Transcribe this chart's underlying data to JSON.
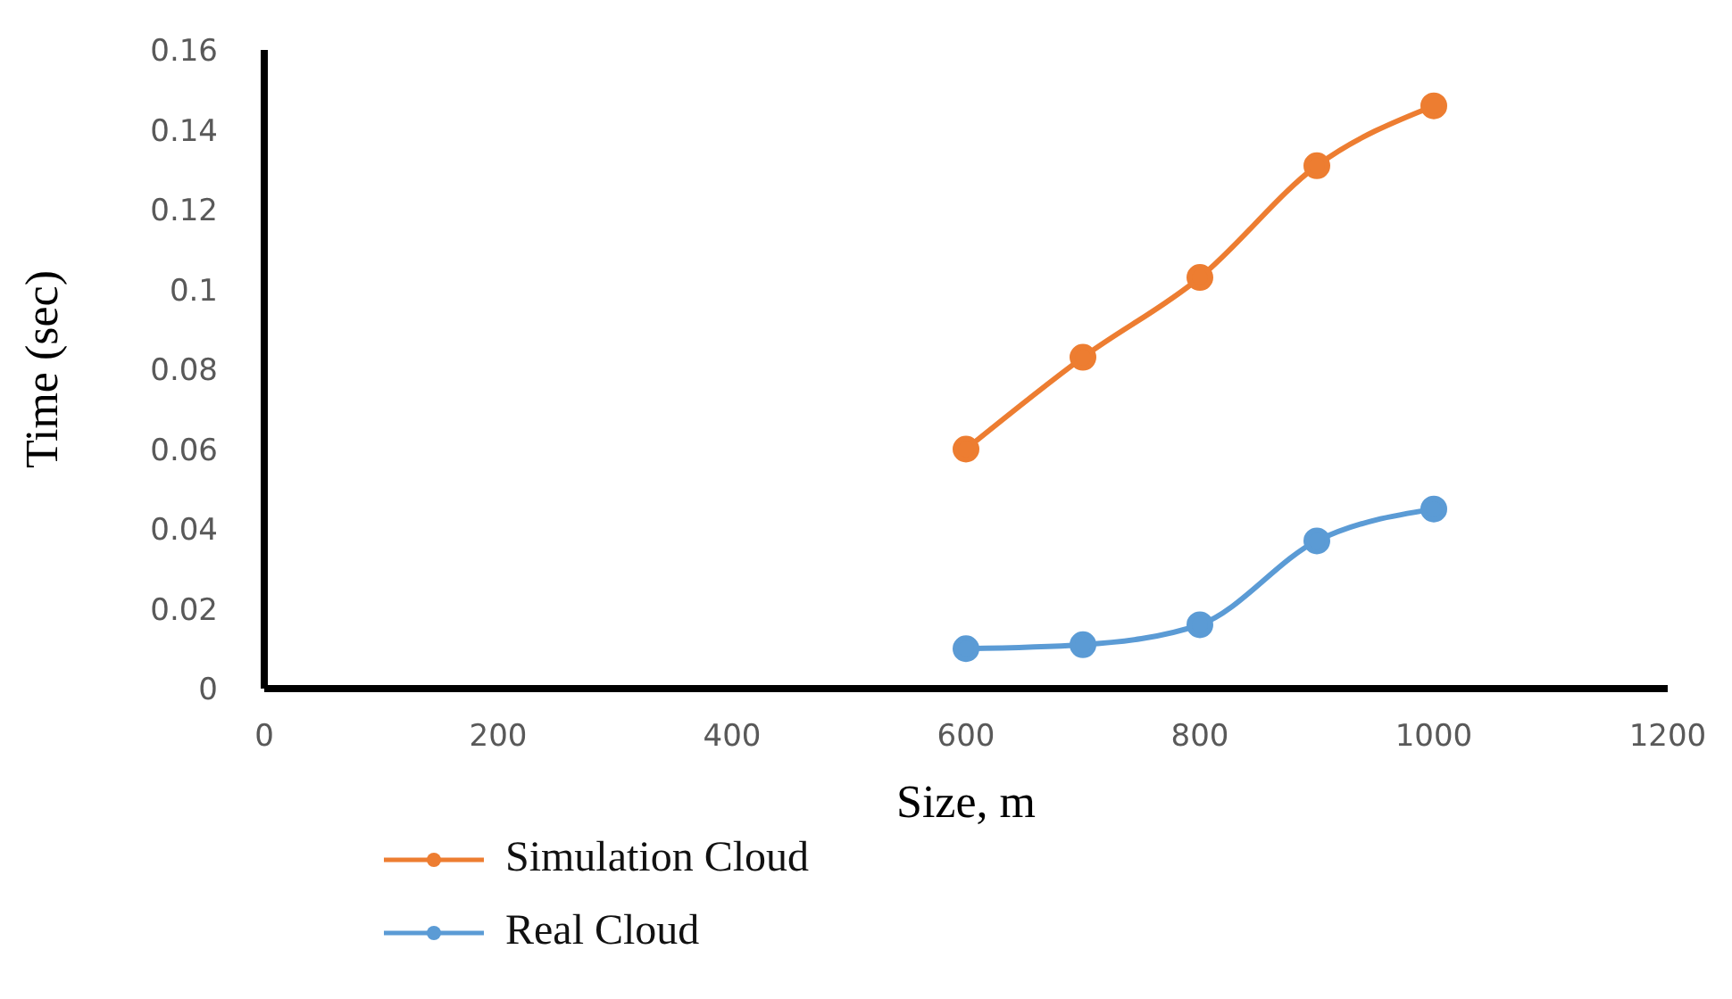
{
  "chart_data": {
    "type": "line",
    "xlabel": "Size, m",
    "ylabel": "Time (sec)",
    "x": [
      600,
      700,
      800,
      900,
      1000
    ],
    "series": [
      {
        "name": "Simulation Cloud",
        "color": "#ed7d31",
        "values": [
          0.06,
          0.083,
          0.103,
          0.131,
          0.146
        ]
      },
      {
        "name": "Real Cloud",
        "color": "#5b9bd5",
        "values": [
          0.01,
          0.011,
          0.016,
          0.037,
          0.045
        ]
      }
    ],
    "xlim": [
      0,
      1200
    ],
    "xticks": [
      0,
      200,
      400,
      600,
      800,
      1000,
      1200
    ],
    "ylim": [
      0,
      0.16
    ],
    "yticks": [
      0,
      0.02,
      0.04,
      0.06,
      0.08,
      0.1,
      0.12,
      0.14,
      0.16
    ],
    "grid": false,
    "legend": "bottom",
    "marker": "circle",
    "line_style": "solid"
  }
}
